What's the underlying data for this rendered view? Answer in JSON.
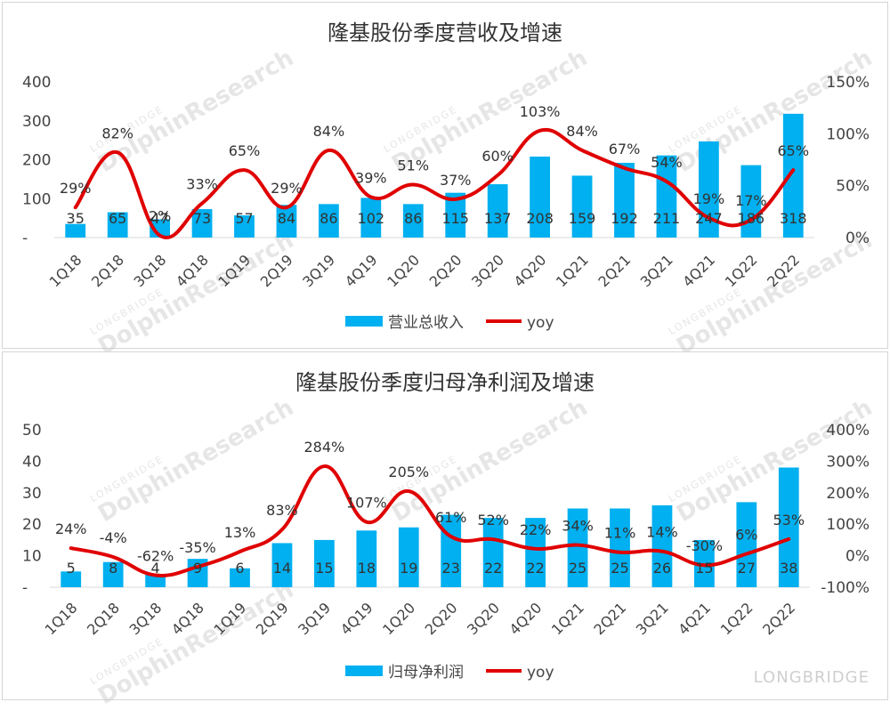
{
  "brand": {
    "watermark_small": "LONGBRIDGE",
    "watermark_big": "DolphinResearch",
    "footer": "LONGBRIDGE"
  },
  "colors": {
    "bar": "#00b0f0",
    "line": "#e00000",
    "text": "#444444",
    "title": "#333333"
  },
  "chart_data": [
    {
      "type": "bar",
      "title": "隆基股份季度营收及增速",
      "categories": [
        "1Q18",
        "2Q18",
        "3Q18",
        "4Q18",
        "1Q19",
        "2Q19",
        "3Q19",
        "4Q19",
        "1Q20",
        "2Q20",
        "3Q20",
        "4Q20",
        "1Q21",
        "2Q21",
        "3Q21",
        "4Q21",
        "1Q22",
        "2Q22"
      ],
      "series": [
        {
          "name": "营业总收入",
          "type": "bar",
          "axis": "left",
          "values": [
            35,
            65,
            47,
            73,
            57,
            84,
            86,
            102,
            86,
            115,
            137,
            208,
            159,
            192,
            211,
            247,
            186,
            318
          ]
        },
        {
          "name": "yoy",
          "type": "line",
          "axis": "right",
          "values": [
            29,
            82,
            2,
            33,
            65,
            29,
            84,
            39,
            51,
            37,
            60,
            103,
            84,
            67,
            54,
            19,
            17,
            65
          ]
        }
      ],
      "left_ticks": [
        "-",
        "100",
        "200",
        "300",
        "400"
      ],
      "right_ticks": [
        "0%",
        "50%",
        "100%",
        "150%"
      ],
      "ylim": [
        0,
        400
      ],
      "y2lim": [
        0,
        150
      ],
      "legend": [
        "营业总收入",
        "yoy"
      ]
    },
    {
      "type": "bar",
      "title": "隆基股份季度归母净利润及增速",
      "categories": [
        "1Q18",
        "2Q18",
        "3Q18",
        "4Q18",
        "1Q19",
        "2Q19",
        "3Q19",
        "4Q19",
        "1Q20",
        "2Q20",
        "3Q20",
        "4Q20",
        "1Q21",
        "2Q21",
        "3Q21",
        "4Q21",
        "1Q22",
        "2Q22"
      ],
      "series": [
        {
          "name": "归母净利润",
          "type": "bar",
          "axis": "left",
          "values": [
            5,
            8,
            4,
            9,
            6,
            14,
            15,
            18,
            19,
            23,
            22,
            22,
            25,
            25,
            26,
            15,
            27,
            38
          ]
        },
        {
          "name": "yoy",
          "type": "line",
          "axis": "right",
          "values": [
            24,
            -4,
            -62,
            -35,
            13,
            83,
            284,
            107,
            205,
            61,
            52,
            22,
            34,
            11,
            14,
            -30,
            6,
            53
          ]
        }
      ],
      "left_ticks": [
        "-",
        "10",
        "20",
        "30",
        "40",
        "50"
      ],
      "right_ticks": [
        "-100%",
        "0%",
        "100%",
        "200%",
        "300%",
        "400%"
      ],
      "ylim": [
        0,
        50
      ],
      "y2lim": [
        -100,
        400
      ],
      "legend": [
        "归母净利润",
        "yoy"
      ]
    }
  ]
}
